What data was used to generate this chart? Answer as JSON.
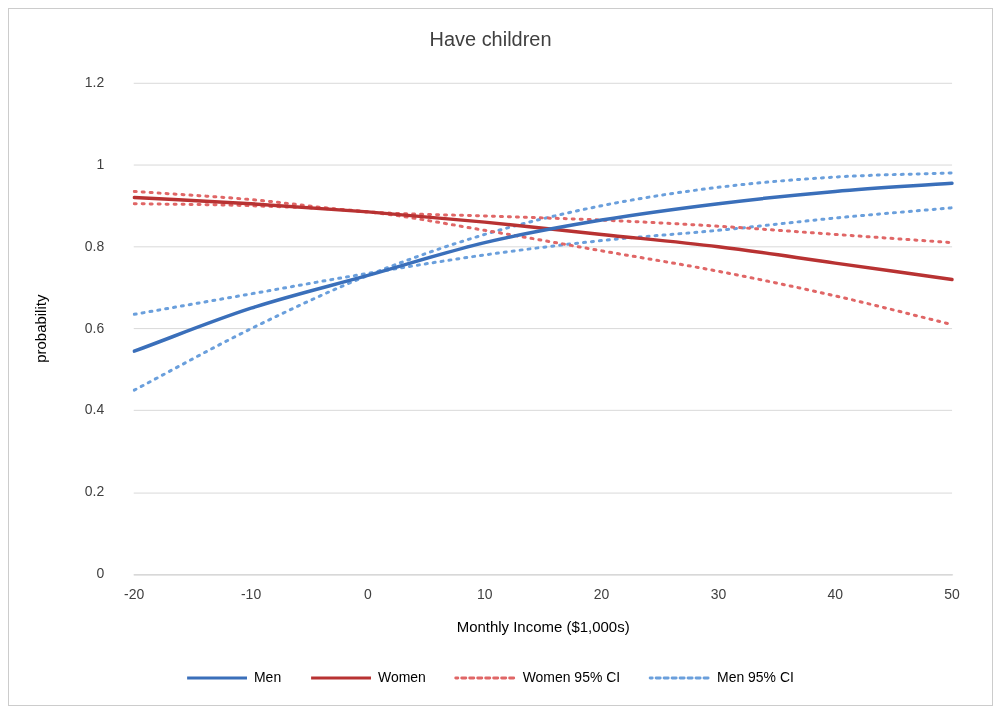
{
  "chart_data": {
    "type": "line",
    "title": "Have children",
    "xlabel": "Monthly Income ($1,000s)",
    "ylabel": "probability",
    "categories": [
      "-20",
      "-10",
      "0",
      "10",
      "20",
      "30",
      "40",
      "50"
    ],
    "series": [
      {
        "name": "Men",
        "color": "#3a6fba",
        "line_style": "solid",
        "values": [
          0.545,
          0.65,
          0.73,
          0.81,
          0.865,
          0.905,
          0.935,
          0.955
        ]
      },
      {
        "name": "Women",
        "color": "#b83232",
        "line_style": "solid",
        "values": [
          0.92,
          0.905,
          0.885,
          0.86,
          0.83,
          0.8,
          0.76,
          0.72
        ]
      },
      {
        "name": "Women 95% CI",
        "color": "#e06666",
        "line_style": "dotted",
        "values": [
          0.935,
          0.915,
          0.885,
          0.875,
          0.865,
          0.85,
          0.83,
          0.81
        ]
      },
      {
        "color": "#e06666",
        "line_style": "dotted",
        "values": [
          0.905,
          0.9,
          0.885,
          0.84,
          0.79,
          0.74,
          0.68,
          0.61
        ]
      },
      {
        "name": "Men 95% CI",
        "color": "#6a9fdc",
        "line_style": "dotted",
        "values": [
          0.635,
          0.685,
          0.735,
          0.78,
          0.815,
          0.84,
          0.87,
          0.895
        ]
      },
      {
        "color": "#6a9fdc",
        "line_style": "dotted",
        "values": [
          0.45,
          0.6,
          0.73,
          0.83,
          0.9,
          0.945,
          0.97,
          0.98
        ]
      }
    ],
    "ylim": [
      0,
      1.2
    ],
    "yticks": [
      0,
      0.2,
      0.4,
      0.6,
      0.8,
      1,
      1.2
    ],
    "grid": "y",
    "legend": "bottom",
    "marker": "none"
  }
}
